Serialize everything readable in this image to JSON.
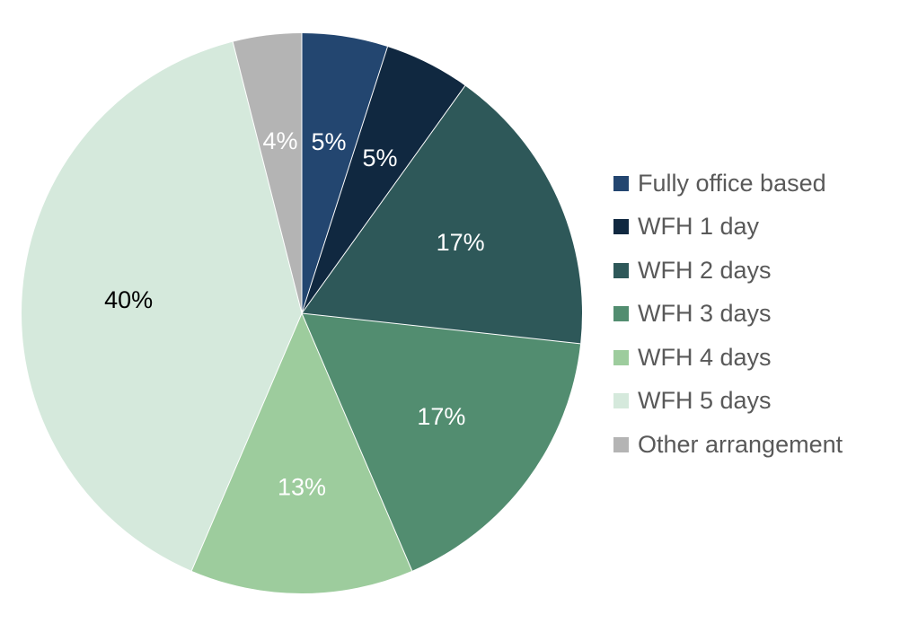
{
  "chart_data": {
    "type": "pie",
    "title": "",
    "start_angle_deg": 0,
    "direction": "clockwise",
    "legend_position": "right",
    "slices": [
      {
        "name": "Fully office based",
        "value": 5,
        "label": "5%",
        "color": "#234670",
        "label_color": "#ffffff"
      },
      {
        "name": "WFH 1 day",
        "value": 5,
        "label": "5%",
        "color": "#102840",
        "label_color": "#ffffff"
      },
      {
        "name": "WFH 2 days",
        "value": 17,
        "label": "17%",
        "color": "#2e5859",
        "label_color": "#ffffff"
      },
      {
        "name": "WFH 3 days",
        "value": 17,
        "label": "17%",
        "color": "#528d70",
        "label_color": "#ffffff"
      },
      {
        "name": "WFH 4 days",
        "value": 13,
        "label": "13%",
        "color": "#9dcc9d",
        "label_color": "#ffffff"
      },
      {
        "name": "WFH 5 days",
        "value": 40,
        "label": "40%",
        "color": "#d5e9dc",
        "label_color": "#000000"
      },
      {
        "name": "Other arrangement",
        "value": 4,
        "label": "4%",
        "color": "#b4b4b4",
        "label_color": "#ffffff"
      }
    ]
  }
}
